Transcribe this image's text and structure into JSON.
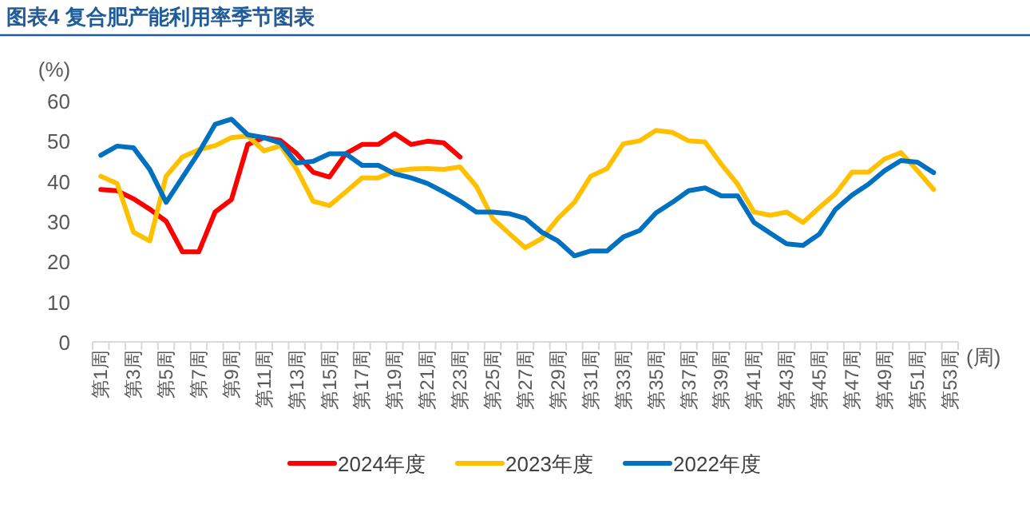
{
  "chart_data": {
    "type": "line",
    "title": "图表4  复合肥产能利用率季节图表",
    "ylabel": "(%)",
    "xlabel": "(周)",
    "legend": "bottom",
    "categories": [
      "第1周",
      null,
      "第3周",
      null,
      "第5周",
      null,
      "第7周",
      null,
      "第9周",
      null,
      "第11周",
      null,
      "第13周",
      null,
      "第15周",
      null,
      "第17周",
      null,
      "第19周",
      null,
      "第21周",
      null,
      "第23周",
      null,
      "第25周",
      null,
      "第27周",
      null,
      "第29周",
      null,
      "第31周",
      null,
      "第33周",
      null,
      "第35周",
      null,
      "第37周",
      null,
      "第39周",
      null,
      "第41周",
      null,
      "第43周",
      null,
      "第45周",
      null,
      "第47周",
      null,
      "第49周",
      null,
      "第51周",
      null,
      "第53周"
    ],
    "ylim": [
      0,
      60
    ],
    "yticks": [
      0,
      10,
      20,
      30,
      40,
      50,
      60
    ],
    "series": [
      {
        "name": "2024年度",
        "color": "#ff0000",
        "values": [
          37.9,
          37.6,
          35.6,
          33,
          30,
          22.4,
          22.4,
          32.3,
          35.4,
          49.1,
          50.8,
          50.1,
          46.8,
          42.2,
          41,
          46.8,
          49.1,
          49.1,
          51.8,
          49.1,
          49.9,
          49.5,
          46.0,
          null,
          null,
          null,
          null,
          null,
          null,
          null,
          null,
          null,
          null,
          null,
          null,
          null,
          null,
          null,
          null,
          null,
          null,
          null,
          null,
          null,
          null,
          null,
          null,
          null,
          null,
          null,
          null,
          null,
          null
        ]
      },
      {
        "name": "2023年度",
        "color": "#ffc000",
        "values": [
          41.2,
          39.4,
          27.3,
          25.1,
          41.2,
          46,
          47.8,
          48.8,
          50.8,
          51.2,
          47.5,
          48.8,
          42.9,
          35,
          33.9,
          37.3,
          40.8,
          40.8,
          42.5,
          43,
          43.1,
          42.9,
          43.5,
          38.7,
          30.7,
          27,
          23.4,
          25.7,
          30.7,
          34.7,
          41.2,
          43.1,
          49.3,
          50,
          52.6,
          52.1,
          50,
          49.7,
          44.2,
          39.2,
          32.3,
          31.5,
          32.3,
          29.7,
          33.4,
          36.9,
          42.2,
          42.2,
          45.5,
          47.1,
          42.6,
          37.9,
          null
        ]
      },
      {
        "name": "2022年度",
        "color": "#0070c0",
        "values": [
          46.4,
          48.7,
          48.3,
          42.9,
          34.7,
          40.9,
          47.1,
          54.1,
          55.4,
          51.5,
          50.8,
          49.5,
          44.5,
          44.9,
          46.8,
          46.8,
          43.9,
          43.9,
          41.8,
          40.8,
          39.4,
          37.3,
          35,
          32.3,
          32.3,
          31.9,
          30.7,
          27.3,
          25.1,
          21.4,
          22.6,
          22.6,
          26.1,
          27.7,
          32.1,
          34.7,
          37.6,
          38.3,
          36.3,
          36.3,
          29.7,
          27,
          24.4,
          24,
          26.8,
          33,
          36.5,
          39.2,
          42.6,
          45.1,
          44.7,
          42.1,
          null
        ]
      }
    ]
  }
}
